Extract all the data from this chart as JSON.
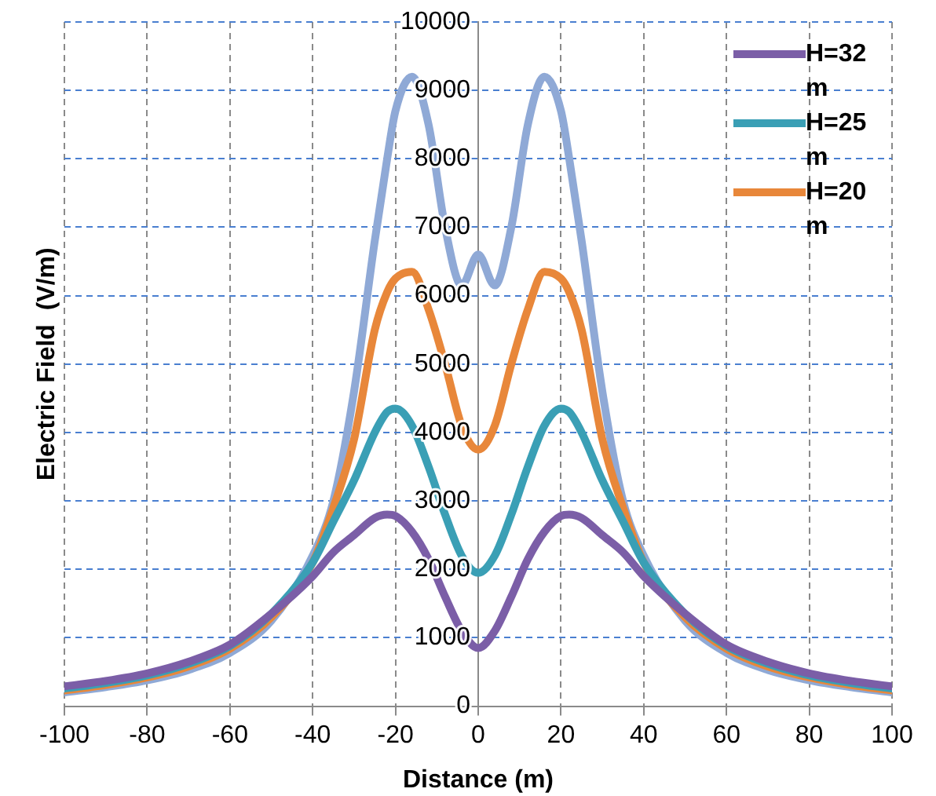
{
  "chart_data": {
    "type": "line",
    "xlabel": "Distance (m)",
    "ylabel": "Electric Field  (V/m)",
    "x": [
      -100,
      -90,
      -80,
      -70,
      -60,
      -50,
      -40,
      -35,
      -30,
      -25,
      -22,
      -20,
      -16,
      -12,
      -8,
      -4,
      0,
      4,
      8,
      12,
      16,
      20,
      22,
      25,
      30,
      35,
      40,
      50,
      60,
      70,
      80,
      90,
      100
    ],
    "series": [
      {
        "name": "H=32 m",
        "color": "#7b5ea7",
        "values": [
          290,
          370,
          480,
          650,
          900,
          1350,
          1900,
          2250,
          2500,
          2750,
          2800,
          2780,
          2550,
          2150,
          1600,
          1100,
          850,
          1100,
          1600,
          2150,
          2550,
          2780,
          2800,
          2750,
          2500,
          2250,
          1900,
          1350,
          900,
          650,
          480,
          370,
          290
        ]
      },
      {
        "name": "H=25 m",
        "color": "#3a9fb5",
        "values": [
          260,
          340,
          450,
          620,
          880,
          1350,
          2100,
          2700,
          3300,
          4000,
          4300,
          4350,
          4100,
          3500,
          2800,
          2200,
          1950,
          2200,
          2800,
          3500,
          4100,
          4350,
          4300,
          4000,
          3300,
          2700,
          2100,
          1350,
          880,
          620,
          450,
          340,
          260
        ]
      },
      {
        "name": "H=20 m",
        "color": "#e8873a",
        "values": [
          230,
          310,
          420,
          580,
          840,
          1300,
          2100,
          2900,
          3900,
          5500,
          6050,
          6250,
          6350,
          5800,
          5000,
          4100,
          3750,
          4100,
          5000,
          5800,
          6350,
          6250,
          6050,
          5500,
          3900,
          2900,
          2100,
          1300,
          840,
          580,
          420,
          310,
          230
        ]
      },
      {
        "color": "#8fa9d6",
        "values": [
          200,
          280,
          380,
          530,
          780,
          1250,
          2200,
          3000,
          4600,
          6800,
          8000,
          8700,
          9200,
          8500,
          7000,
          6150,
          6600,
          6150,
          7000,
          8500,
          9200,
          8700,
          8000,
          6800,
          4600,
          3000,
          2200,
          1250,
          780,
          530,
          380,
          280,
          200
        ]
      }
    ],
    "xlim": [
      -100,
      100
    ],
    "xticks": [
      -100,
      -80,
      -60,
      -40,
      -20,
      0,
      20,
      40,
      60,
      80,
      100
    ],
    "ylim": [
      0,
      10000
    ],
    "yticks": [
      0,
      1000,
      2000,
      3000,
      4000,
      5000,
      6000,
      7000,
      8000,
      9000,
      10000
    ],
    "grid": true,
    "legend": "top right",
    "marker": "none",
    "line_style": "solid"
  }
}
